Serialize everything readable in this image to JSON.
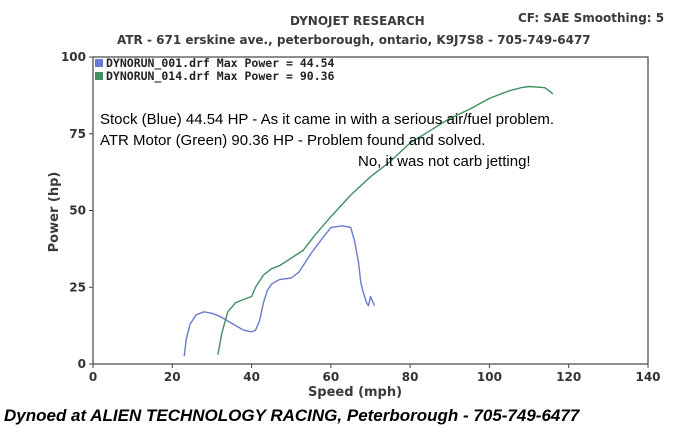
{
  "header": {
    "title": "DYNOJET RESEARCH",
    "settings": "CF: SAE  Smoothing: 5",
    "address": "ATR - 671 erskine ave., peterborough, ontario, K9J7S8 - 705-749-6477"
  },
  "footer": "Dynoed at ALIEN TECHNOLOGY RACING, Peterborough - 705-749-6477",
  "chart_data": {
    "type": "line",
    "xlabel": "Speed (mph)",
    "ylabel": "Power (hp)",
    "xlim": [
      0,
      140
    ],
    "ylim": [
      0,
      100
    ],
    "xticks": [
      0,
      20,
      40,
      60,
      80,
      100,
      120,
      140
    ],
    "yticks": [
      0,
      25,
      50,
      75,
      100
    ],
    "grid": false,
    "legend_position": "top-left",
    "annotations": [
      "Stock (Blue) 44.54 HP - As it came in with a serious air/fuel problem.",
      "ATR Motor (Green) 90.36 HP - Problem found and solved.",
      "No, it was not carb jetting!"
    ],
    "series": [
      {
        "name": "DYNORUN_001.drf Max Power = 44.54",
        "color": "#6a7ad0",
        "x": [
          23,
          23.5,
          24.5,
          26,
          28,
          30,
          32,
          34,
          36,
          38,
          40,
          41,
          42,
          43,
          44,
          45,
          47,
          50,
          52,
          55,
          57,
          60,
          63,
          65,
          66,
          67,
          67.5,
          68,
          68.5,
          69,
          69.5,
          70,
          71
        ],
        "y": [
          2.5,
          8,
          13,
          16,
          17,
          16.5,
          15.5,
          14,
          12.5,
          11,
          10.5,
          11,
          14,
          20,
          24,
          26,
          27.5,
          28,
          30,
          36,
          39.5,
          44.5,
          45,
          44.5,
          40,
          33,
          27,
          24,
          22,
          20,
          19,
          22,
          19
        ]
      },
      {
        "name": "DYNORUN_014.drf Max Power = 90.36",
        "color": "#3f8f5f",
        "x": [
          31.5,
          32.5,
          34,
          36,
          38,
          40,
          41,
          42,
          43,
          44,
          45,
          47,
          50,
          53,
          56,
          60,
          65,
          70,
          75,
          80,
          85,
          90,
          95,
          100,
          105,
          108,
          110,
          112,
          114,
          116
        ],
        "y": [
          3,
          10,
          17,
          20,
          21,
          22,
          25,
          27,
          29,
          30,
          31,
          32,
          34.5,
          37,
          42,
          48,
          55,
          61,
          66,
          72,
          76,
          80,
          83,
          86.5,
          89,
          90,
          90.4,
          90.2,
          90,
          88
        ]
      }
    ]
  }
}
